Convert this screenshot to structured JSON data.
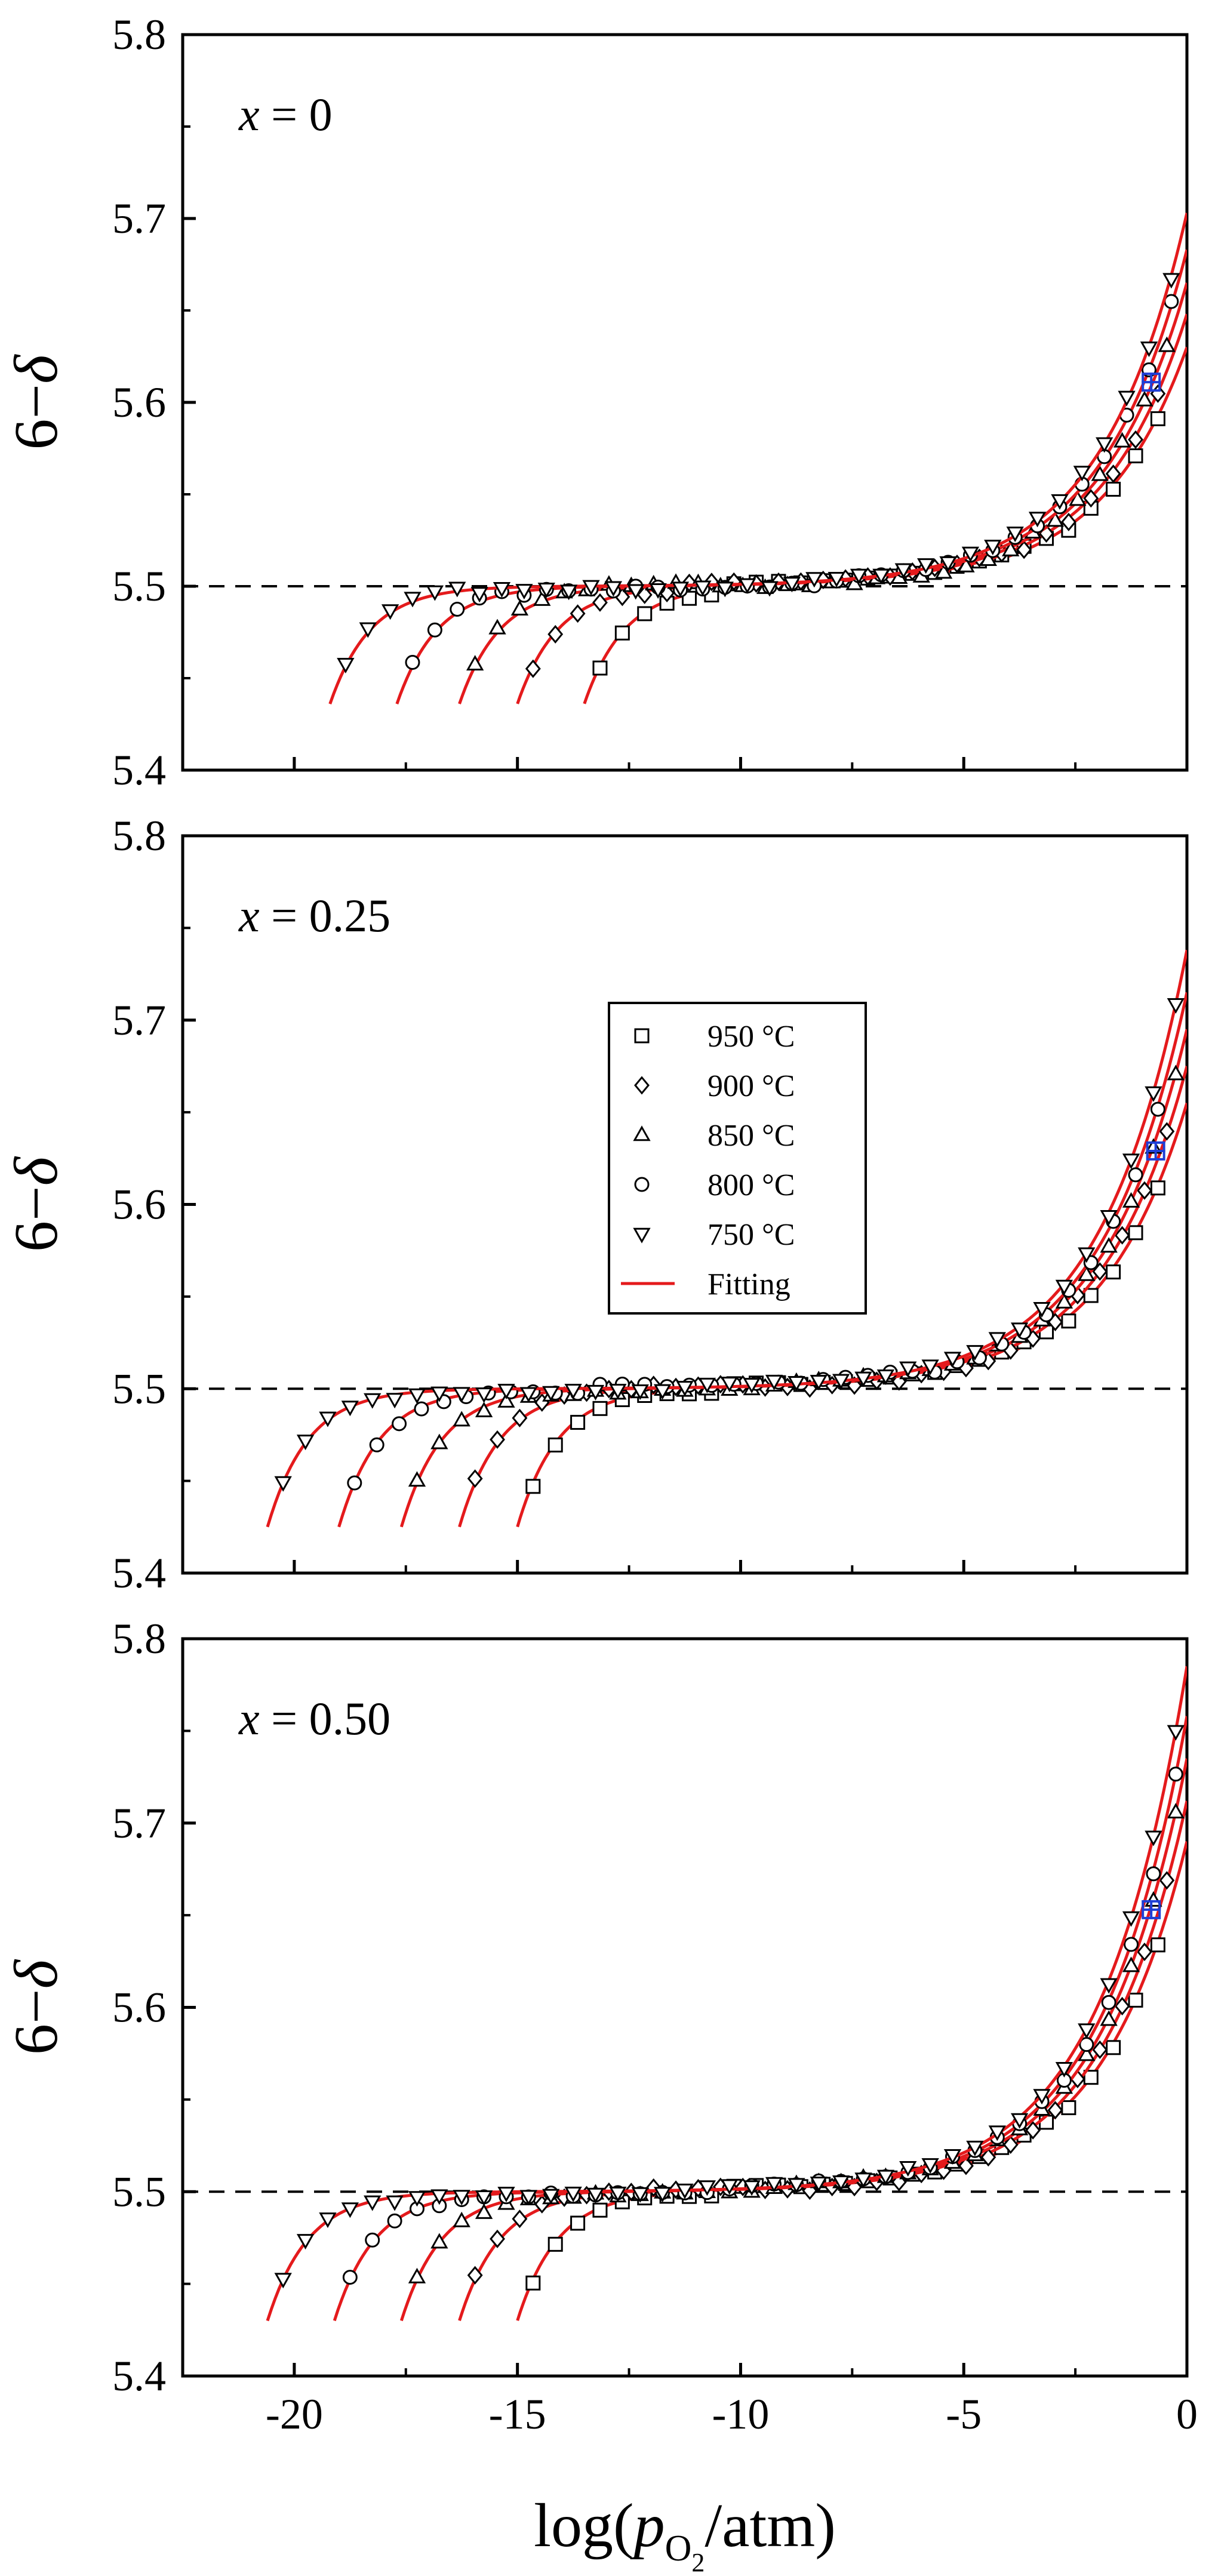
{
  "chart_data": {
    "type": "scatter",
    "xlabel": "log(pO2/atm)",
    "xlabel_parts": {
      "prefix": "log(",
      "var": "p",
      "sub": "O",
      "sub2": "2",
      "suffix": "/atm)"
    },
    "ylabel": "6−δ",
    "ylabel_parts": {
      "prefix": "6−",
      "var": "δ"
    },
    "xlim": [
      -22.5,
      0
    ],
    "ylim": [
      5.4,
      5.8
    ],
    "x_ticks": [
      -20,
      -15,
      -10,
      -5,
      0
    ],
    "x_tick_labels": [
      "-20",
      "-15",
      "-10",
      "-5",
      "0"
    ],
    "y_ticks": [
      5.4,
      5.5,
      5.6,
      5.7,
      5.8
    ],
    "y_tick_labels": [
      "5.4",
      "5.5",
      "5.6",
      "5.7",
      "5.8"
    ],
    "reference_line": {
      "y": 5.5,
      "style": "dashed"
    },
    "legend": {
      "placement": "center",
      "entries": [
        {
          "label": "950 °C",
          "marker": "square"
        },
        {
          "label": "900 °C",
          "marker": "diamond"
        },
        {
          "label": "850 °C",
          "marker": "triangle-up"
        },
        {
          "label": "800 °C",
          "marker": "circle"
        },
        {
          "label": "750 °C",
          "marker": "triangle-down"
        },
        {
          "label": "Fitting",
          "marker": "line",
          "color": "#e41a1c"
        }
      ]
    },
    "colors": {
      "fit": "#e41a1c",
      "marker": "#000000",
      "highlight": "#1f3fd6",
      "axis": "#000000"
    },
    "panels": [
      {
        "label_var": "x",
        "label_eq": " = 0",
        "series": [
          {
            "name": "950 °C",
            "marker": "square",
            "x_start": -13.5,
            "y_start": 5.436,
            "y_end": 5.63
          },
          {
            "name": "900 °C",
            "marker": "diamond",
            "x_start": -15.0,
            "y_start": 5.436,
            "y_end": 5.648
          },
          {
            "name": "850 °C",
            "marker": "triangle-up",
            "x_start": -16.3,
            "y_start": 5.436,
            "y_end": 5.665
          },
          {
            "name": "800 °C",
            "marker": "circle",
            "x_start": -17.7,
            "y_start": 5.436,
            "y_end": 5.683
          },
          {
            "name": "750 °C",
            "marker": "triangle-down",
            "x_start": -19.2,
            "y_start": 5.436,
            "y_end": 5.703
          }
        ],
        "highlight": {
          "x": -0.8,
          "y": 5.611
        }
      },
      {
        "label_var": "x",
        "label_eq": " = 0.25",
        "series": [
          {
            "name": "950 °C",
            "marker": "square",
            "x_start": -15.0,
            "y_start": 5.425,
            "y_end": 5.655
          },
          {
            "name": "900 °C",
            "marker": "diamond",
            "x_start": -16.3,
            "y_start": 5.425,
            "y_end": 5.675
          },
          {
            "name": "850 °C",
            "marker": "triangle-up",
            "x_start": -17.6,
            "y_start": 5.425,
            "y_end": 5.695
          },
          {
            "name": "800 °C",
            "marker": "circle",
            "x_start": -19.0,
            "y_start": 5.425,
            "y_end": 5.715
          },
          {
            "name": "750 °C",
            "marker": "triangle-down",
            "x_start": -20.6,
            "y_start": 5.425,
            "y_end": 5.738
          }
        ],
        "highlight": {
          "x": -0.7,
          "y": 5.629
        }
      },
      {
        "label_var": "x",
        "label_eq": " = 0.50",
        "series": [
          {
            "name": "950 °C",
            "marker": "square",
            "x_start": -15.0,
            "y_start": 5.43,
            "y_end": 5.69
          },
          {
            "name": "900 °C",
            "marker": "diamond",
            "x_start": -16.3,
            "y_start": 5.43,
            "y_end": 5.712
          },
          {
            "name": "850 °C",
            "marker": "triangle-up",
            "x_start": -17.6,
            "y_start": 5.43,
            "y_end": 5.735
          },
          {
            "name": "800 °C",
            "marker": "circle",
            "x_start": -19.1,
            "y_start": 5.43,
            "y_end": 5.758
          },
          {
            "name": "750 °C",
            "marker": "triangle-down",
            "x_start": -20.6,
            "y_start": 5.43,
            "y_end": 5.785
          }
        ],
        "highlight": {
          "x": -0.8,
          "y": 5.653
        }
      }
    ]
  }
}
